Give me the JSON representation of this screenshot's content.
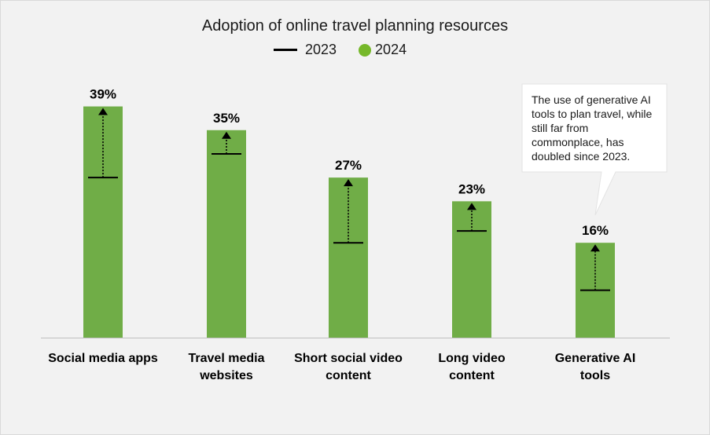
{
  "chart_data": {
    "type": "bar",
    "title": "Adoption of online travel planning resources",
    "legend": {
      "position": "top",
      "items": [
        "2023",
        "2024"
      ]
    },
    "categories": [
      "Social media apps",
      "Travel media websites",
      "Short social video content",
      "Long video content",
      "Generative AI tools"
    ],
    "category_lines": [
      [
        "Social media apps"
      ],
      [
        "Travel media",
        "websites"
      ],
      [
        "Short social video",
        "content"
      ],
      [
        "Long video",
        "content"
      ],
      [
        "Generative AI",
        "tools"
      ]
    ],
    "series": [
      {
        "name": "2024",
        "values": [
          39,
          35,
          27,
          23,
          16
        ],
        "labels": [
          "39%",
          "35%",
          "27%",
          "23%",
          "16%"
        ],
        "color": "#70AD47",
        "mark": "bar"
      },
      {
        "name": "2023",
        "values": [
          27,
          31,
          16,
          18,
          8
        ],
        "color": "#000000",
        "mark": "line"
      }
    ],
    "ylim": [
      0,
      40
    ],
    "grid": false,
    "annotation": "The use of generative AI tools to plan travel, while still far from commonplace, has doubled since 2023."
  }
}
